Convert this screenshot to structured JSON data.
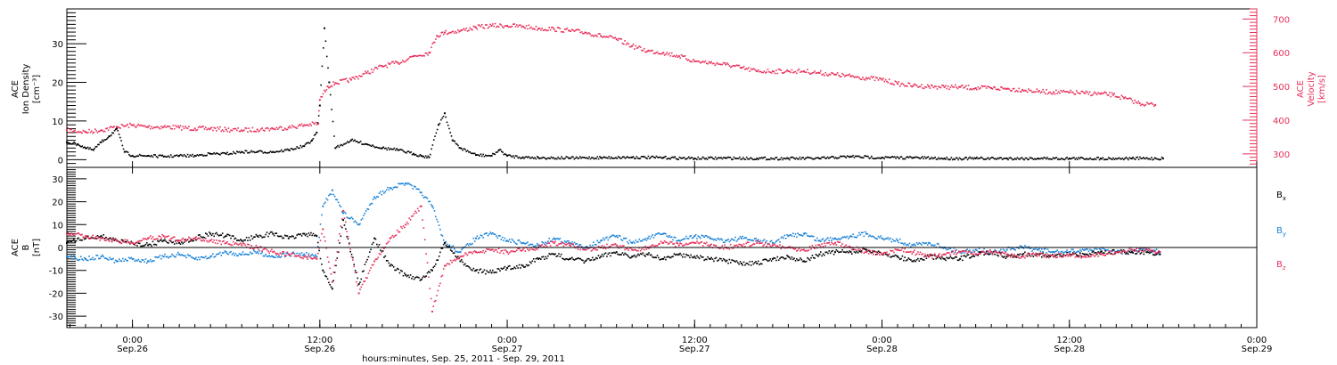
{
  "figure": {
    "footer_label": "hours:minutes, Sep. 25, 2011 - Sep. 29, 2011"
  },
  "time_axis": {
    "ticks": [
      {
        "time": "0:00",
        "date": "Sep.26",
        "hour": 24
      },
      {
        "time": "12:00",
        "date": "Sep.26",
        "hour": 36
      },
      {
        "time": "0:00",
        "date": "Sep.27",
        "hour": 48
      },
      {
        "time": "12:00",
        "date": "Sep.27",
        "hour": 60
      },
      {
        "time": "0:00",
        "date": "Sep.28",
        "hour": 72
      },
      {
        "time": "12:00",
        "date": "Sep.28",
        "hour": 84
      },
      {
        "time": "0:00",
        "date": "Sep.29",
        "hour": 96
      }
    ]
  },
  "colors": {
    "density": "#000000",
    "velocity": "#e8305a",
    "bx": "#000000",
    "by": "#1a82d6",
    "bz": "#e8305a",
    "axis": "#000000"
  },
  "chart_data": [
    {
      "type": "scatter",
      "panel": "top",
      "title": "",
      "x_unit": "hours since Sep. 25, 2011 00:00",
      "xlim": [
        19.8,
        96
      ],
      "ylabel_left": [
        "ACE",
        "Ion Density",
        "[cm⁻³]"
      ],
      "ylabel_right": [
        "ACE",
        "Velocity",
        "[km/s]"
      ],
      "yticks_left": [
        0,
        10,
        20,
        30
      ],
      "yticks_right": [
        300,
        400,
        500,
        600,
        700
      ],
      "ylim_left": [
        -2,
        39
      ],
      "ylim_right": [
        260,
        730
      ],
      "series": [
        {
          "name": "Ion Density",
          "axis": "left",
          "color": "#000000",
          "x": [
            19.8,
            20.5,
            21.0,
            21.5,
            22.0,
            22.5,
            23.0,
            23.5,
            24.0,
            25.0,
            26.0,
            27.0,
            28.0,
            29.0,
            30.0,
            31.0,
            32.0,
            33.0,
            34.0,
            35.0,
            35.5,
            35.8,
            36.0,
            36.3,
            36.6,
            37.0,
            38.0,
            39.0,
            40.0,
            41.0,
            42.0,
            42.5,
            43.0,
            43.6,
            44.0,
            44.5,
            45.0,
            46.0,
            47.0,
            47.5,
            48.0,
            49.0,
            50.0,
            52.0,
            54.0,
            56.0,
            58.0,
            60.0,
            62.0,
            64.0,
            66.0,
            68.0,
            70.0,
            72.0,
            74.0,
            76.0,
            78.0,
            80.0,
            82.0,
            84.0,
            86.0,
            88.0,
            90.0
          ],
          "y": [
            4.5,
            4.0,
            3.0,
            2.5,
            4.5,
            6.0,
            8.0,
            2.0,
            1.0,
            1.0,
            0.8,
            1.0,
            1.0,
            1.5,
            1.5,
            2.0,
            2.0,
            2.0,
            2.5,
            3.5,
            5.0,
            7.0,
            14.0,
            34.0,
            20.0,
            3.0,
            5.0,
            4.0,
            3.0,
            2.5,
            1.5,
            1.0,
            0.6,
            9.0,
            12.0,
            5.0,
            3.0,
            1.2,
            1.0,
            2.5,
            1.0,
            0.6,
            0.5,
            0.4,
            0.5,
            0.6,
            0.5,
            0.3,
            0.4,
            0.3,
            0.3,
            0.3,
            0.8,
            0.5,
            0.5,
            0.3,
            0.3,
            0.3,
            0.3,
            0.3,
            0.3,
            0.3,
            0.3
          ]
        },
        {
          "name": "Velocity",
          "axis": "right",
          "color": "#e8305a",
          "x": [
            19.8,
            21.0,
            22.0,
            23.0,
            24.0,
            25.0,
            26.0,
            27.0,
            28.0,
            29.0,
            30.0,
            31.0,
            32.0,
            33.0,
            34.0,
            35.0,
            35.9,
            36.0,
            36.5,
            37.0,
            38.0,
            39.0,
            40.0,
            41.0,
            42.0,
            43.0,
            43.5,
            44.0,
            45.0,
            46.0,
            47.0,
            48.0,
            49.0,
            50.0,
            51.0,
            52.0,
            53.0,
            54.0,
            55.0,
            56.0,
            57.0,
            58.0,
            59.0,
            60.0,
            61.0,
            62.0,
            63.0,
            64.0,
            65.0,
            66.0,
            67.0,
            68.0,
            69.0,
            70.0,
            71.0,
            72.0,
            73.0,
            74.0,
            75.0,
            76.0,
            77.0,
            78.0,
            79.0,
            80.0,
            81.0,
            82.0,
            83.0,
            84.0,
            85.0,
            86.0,
            86.8,
            87.5,
            88.5,
            89.5
          ],
          "y": [
            370,
            365,
            370,
            380,
            385,
            380,
            380,
            378,
            375,
            375,
            372,
            370,
            372,
            375,
            378,
            385,
            390,
            460,
            500,
            510,
            520,
            540,
            560,
            570,
            590,
            600,
            650,
            660,
            665,
            675,
            680,
            680,
            678,
            672,
            670,
            665,
            660,
            650,
            640,
            620,
            605,
            600,
            590,
            575,
            570,
            565,
            555,
            545,
            545,
            545,
            545,
            540,
            535,
            530,
            525,
            520,
            508,
            502,
            500,
            498,
            498,
            495,
            495,
            493,
            490,
            485,
            483,
            482,
            480,
            478,
            475,
            465,
            450,
            445
          ]
        }
      ]
    },
    {
      "type": "scatter",
      "panel": "bottom",
      "title": "",
      "x_unit": "hours since Sep. 25, 2011 00:00",
      "xlim": [
        19.8,
        96
      ],
      "ylabel_left": [
        "ACE",
        "B",
        "[nT]"
      ],
      "yticks_left": [
        -30,
        -20,
        -10,
        0,
        10,
        20,
        30
      ],
      "ylim_left": [
        -35,
        35
      ],
      "zero_line": true,
      "series": [
        {
          "name": "Bx",
          "color": "#000000",
          "x": [
            19.8,
            21.0,
            22.0,
            23.0,
            24.0,
            25.0,
            26.0,
            27.0,
            28.0,
            29.0,
            30.0,
            31.0,
            32.0,
            33.0,
            34.0,
            35.0,
            35.8,
            36.2,
            36.8,
            37.5,
            38.5,
            39.5,
            40.5,
            41.5,
            42.5,
            43.2,
            44.0,
            45.0,
            46.0,
            47.0,
            48.0,
            49.0,
            50.0,
            51.0,
            52.0,
            53.0,
            54.0,
            55.0,
            56.0,
            57.0,
            58.0,
            59.0,
            60.0,
            61.0,
            62.0,
            63.0,
            64.0,
            65.0,
            66.0,
            67.0,
            68.0,
            69.0,
            70.0,
            71.0,
            72.0,
            73.0,
            74.0,
            75.0,
            76.0,
            77.0,
            78.0,
            79.0,
            80.0,
            81.0,
            82.0,
            83.0,
            84.0,
            85.0,
            86.0,
            87.0,
            88.0,
            89.0,
            89.8
          ],
          "y": [
            2,
            4,
            5,
            3,
            2,
            1,
            3,
            2,
            4,
            6,
            5,
            3,
            5,
            6,
            4,
            6,
            5,
            -10,
            -18,
            12,
            -16,
            4,
            -8,
            -12,
            -14,
            -10,
            2,
            -6,
            -10,
            -11,
            -9,
            -8,
            -5,
            -3,
            -5,
            -6,
            -4,
            -2,
            -4,
            -3,
            -5,
            -3,
            -4,
            -5,
            -6,
            -7,
            -7,
            -5,
            -4,
            -6,
            -3,
            -2,
            -2,
            -1,
            -3,
            -4,
            -6,
            -4,
            -5,
            -5,
            -3,
            -2,
            -4,
            -3,
            -3,
            -4,
            -3,
            -3,
            -2,
            -2,
            -2,
            -2,
            -3
          ]
        },
        {
          "name": "By",
          "color": "#1a82d6",
          "x": [
            19.8,
            21.0,
            22.0,
            23.0,
            24.0,
            25.0,
            26.0,
            27.0,
            28.0,
            29.0,
            30.0,
            31.0,
            32.0,
            33.0,
            34.0,
            35.0,
            35.8,
            36.2,
            36.8,
            37.5,
            38.5,
            39.5,
            40.5,
            41.5,
            42.5,
            43.2,
            44.0,
            45.0,
            46.0,
            47.0,
            48.0,
            49.0,
            50.0,
            51.0,
            52.0,
            53.0,
            54.0,
            55.0,
            56.0,
            57.0,
            58.0,
            59.0,
            60.0,
            61.0,
            62.0,
            63.0,
            64.0,
            65.0,
            66.0,
            67.0,
            68.0,
            69.0,
            70.0,
            71.0,
            72.0,
            73.0,
            74.0,
            75.0,
            76.0,
            77.0,
            78.0,
            79.0,
            80.0,
            81.0,
            82.0,
            83.0,
            84.0,
            85.0,
            86.0,
            87.0,
            88.0,
            89.0,
            89.8
          ],
          "y": [
            -4,
            -5,
            -4,
            -6,
            -5,
            -6,
            -4,
            -3,
            -5,
            -4,
            -2,
            -3,
            -2,
            -4,
            -3,
            -3,
            -4,
            18,
            25,
            15,
            10,
            22,
            26,
            28,
            24,
            18,
            2,
            -2,
            4,
            6,
            3,
            2,
            1,
            4,
            2,
            0,
            3,
            5,
            2,
            4,
            6,
            3,
            5,
            4,
            3,
            4,
            3,
            2,
            5,
            6,
            3,
            4,
            5,
            6,
            4,
            3,
            1,
            2,
            0,
            -2,
            -1,
            -2,
            -1,
            0,
            -1,
            -2,
            -2,
            -1,
            -1,
            -2,
            -2,
            -1,
            -2
          ]
        },
        {
          "name": "Bz",
          "color": "#e8305a",
          "x": [
            19.8,
            21.0,
            22.0,
            23.0,
            24.0,
            25.0,
            26.0,
            27.0,
            28.0,
            29.0,
            30.0,
            31.0,
            32.0,
            33.0,
            34.0,
            35.0,
            35.8,
            36.2,
            36.8,
            37.5,
            38.5,
            39.5,
            40.5,
            41.5,
            42.5,
            43.2,
            44.0,
            45.0,
            46.0,
            47.0,
            48.0,
            49.0,
            50.0,
            51.0,
            52.0,
            53.0,
            54.0,
            55.0,
            56.0,
            57.0,
            58.0,
            59.0,
            60.0,
            61.0,
            62.0,
            63.0,
            64.0,
            65.0,
            66.0,
            67.0,
            68.0,
            69.0,
            70.0,
            71.0,
            72.0,
            73.0,
            74.0,
            75.0,
            76.0,
            77.0,
            78.0,
            79.0,
            80.0,
            81.0,
            82.0,
            83.0,
            84.0,
            85.0,
            86.0,
            87.0,
            88.0,
            89.0,
            89.8
          ],
          "y": [
            6,
            5,
            4,
            3,
            2,
            4,
            5,
            3,
            4,
            3,
            2,
            1,
            0,
            -2,
            -3,
            -4,
            -5,
            8,
            -15,
            16,
            -20,
            -6,
            4,
            10,
            18,
            -28,
            -8,
            -4,
            -2,
            -1,
            -2,
            -1,
            0,
            2,
            1,
            -1,
            0,
            1,
            -1,
            0,
            2,
            1,
            2,
            1,
            0,
            1,
            2,
            1,
            0,
            -1,
            1,
            2,
            0,
            -2,
            -3,
            -1,
            -2,
            -4,
            -3,
            -2,
            -3,
            -2,
            -3,
            -4,
            -3,
            -4,
            -3,
            -4,
            -3,
            -2,
            -1,
            -1,
            -2
          ]
        }
      ],
      "legend": {
        "placement": "right",
        "entries": [
          {
            "label": "B",
            "sub": "x",
            "color": "#000000"
          },
          {
            "label": "B",
            "sub": "y",
            "color": "#1a82d6"
          },
          {
            "label": "B",
            "sub": "z",
            "color": "#e8305a"
          }
        ]
      }
    }
  ]
}
